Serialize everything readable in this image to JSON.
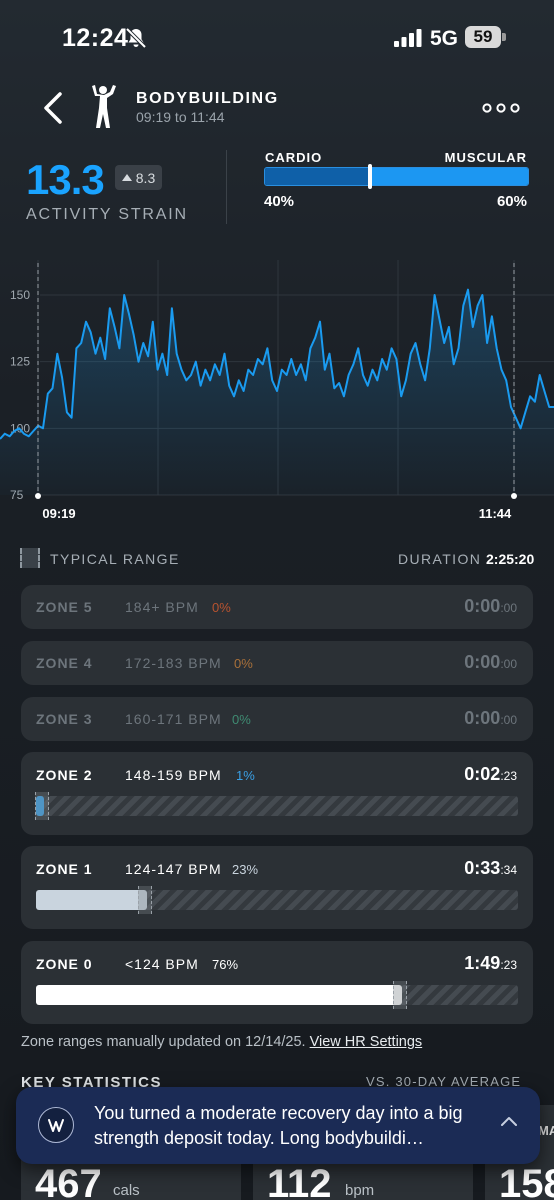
{
  "status_bar": {
    "time": "12:24",
    "network": "5G",
    "battery": "59"
  },
  "header": {
    "title": "BODYBUILDING",
    "time_range": "09:19 to 11:44"
  },
  "strain": {
    "value": "13.3",
    "delta": "8.3",
    "label": "ACTIVITY STRAIN"
  },
  "cardio_muscular": {
    "cardio_label": "CARDIO",
    "muscular_label": "MUSCULAR",
    "cardio_pct": "40%",
    "muscular_pct": "60%",
    "cardio_fraction": 0.4
  },
  "chart_data": {
    "type": "line",
    "y_ticks": [
      "150",
      "125",
      "100",
      "75"
    ],
    "ylim": [
      75,
      165
    ],
    "start_label": "09:19",
    "end_label": "11:44",
    "color": "#1a9bf0",
    "series": [
      {
        "values": [
          96,
          98,
          97,
          99,
          100,
          98,
          97,
          99,
          101,
          100,
          113,
          115,
          128,
          119,
          106,
          104,
          130,
          132,
          140,
          136,
          128,
          134,
          126,
          145,
          138,
          130,
          150,
          143,
          135,
          125,
          132,
          127,
          140,
          122,
          128,
          120,
          145,
          128,
          122,
          118,
          120,
          125,
          116,
          122,
          118,
          124,
          120,
          128,
          116,
          112,
          118,
          114,
          122,
          120,
          126,
          124,
          130,
          118,
          114,
          122,
          120,
          126,
          120,
          124,
          118,
          130,
          134,
          140,
          122,
          128,
          115,
          117,
          112,
          120,
          124,
          130,
          120,
          116,
          122,
          118,
          126,
          122,
          130,
          126,
          112,
          118,
          128,
          132,
          124,
          118,
          130,
          150,
          141,
          132,
          138,
          124,
          130,
          146,
          152,
          138,
          146,
          150,
          132,
          142,
          130,
          122,
          118,
          108,
          104,
          100,
          106,
          112,
          110,
          120,
          114,
          108,
          108
        ]
      }
    ]
  },
  "typical_range": {
    "label": "TYPICAL RANGE",
    "duration_label": "DURATION",
    "duration": "2:25:20"
  },
  "zones": [
    {
      "name": "ZONE 5",
      "bpm": "184+ BPM",
      "pct": "0%",
      "time": "0:00",
      "sec": ":00",
      "fill": 0,
      "pct_color": "#b8532f"
    },
    {
      "name": "ZONE 4",
      "bpm": "172-183 BPM",
      "pct": "0%",
      "time": "0:00",
      "sec": ":00",
      "fill": 0,
      "pct_color": "#a8703a"
    },
    {
      "name": "ZONE 3",
      "bpm": "160-171 BPM",
      "pct": "0%",
      "time": "0:00",
      "sec": ":00",
      "fill": 0,
      "pct_color": "#3f8b72"
    },
    {
      "name": "ZONE 2",
      "bpm": "148-159 BPM",
      "pct": "1%",
      "time": "0:02",
      "sec": ":23",
      "fill": 0.01,
      "pct_color": "#3aa0e6"
    },
    {
      "name": "ZONE 1",
      "bpm": "124-147 BPM",
      "pct": "23%",
      "time": "0:33",
      "sec": ":34",
      "fill": 0.23,
      "pct_color": "#c9d4de"
    },
    {
      "name": "ZONE 0",
      "bpm": "<124 BPM",
      "pct": "76%",
      "time": "1:49",
      "sec": ":23",
      "fill": 0.76,
      "pct_color": "#ffffff"
    }
  ],
  "note": {
    "text": "Zone ranges manually updated on 12/14/25.",
    "link": "View HR Settings"
  },
  "key_stats": {
    "title": "KEY STATISTICS",
    "right_label": "VS. 30-DAY AVERAGE",
    "items": [
      {
        "value": "467",
        "unit": "cals"
      },
      {
        "value": "112",
        "unit": "bpm"
      },
      {
        "value": "158",
        "unit": ""
      }
    ]
  },
  "toast": {
    "text": "You turned a moderate recovery day into a big strength deposit today. Long bodybuildi…"
  },
  "peek_label": "MA"
}
